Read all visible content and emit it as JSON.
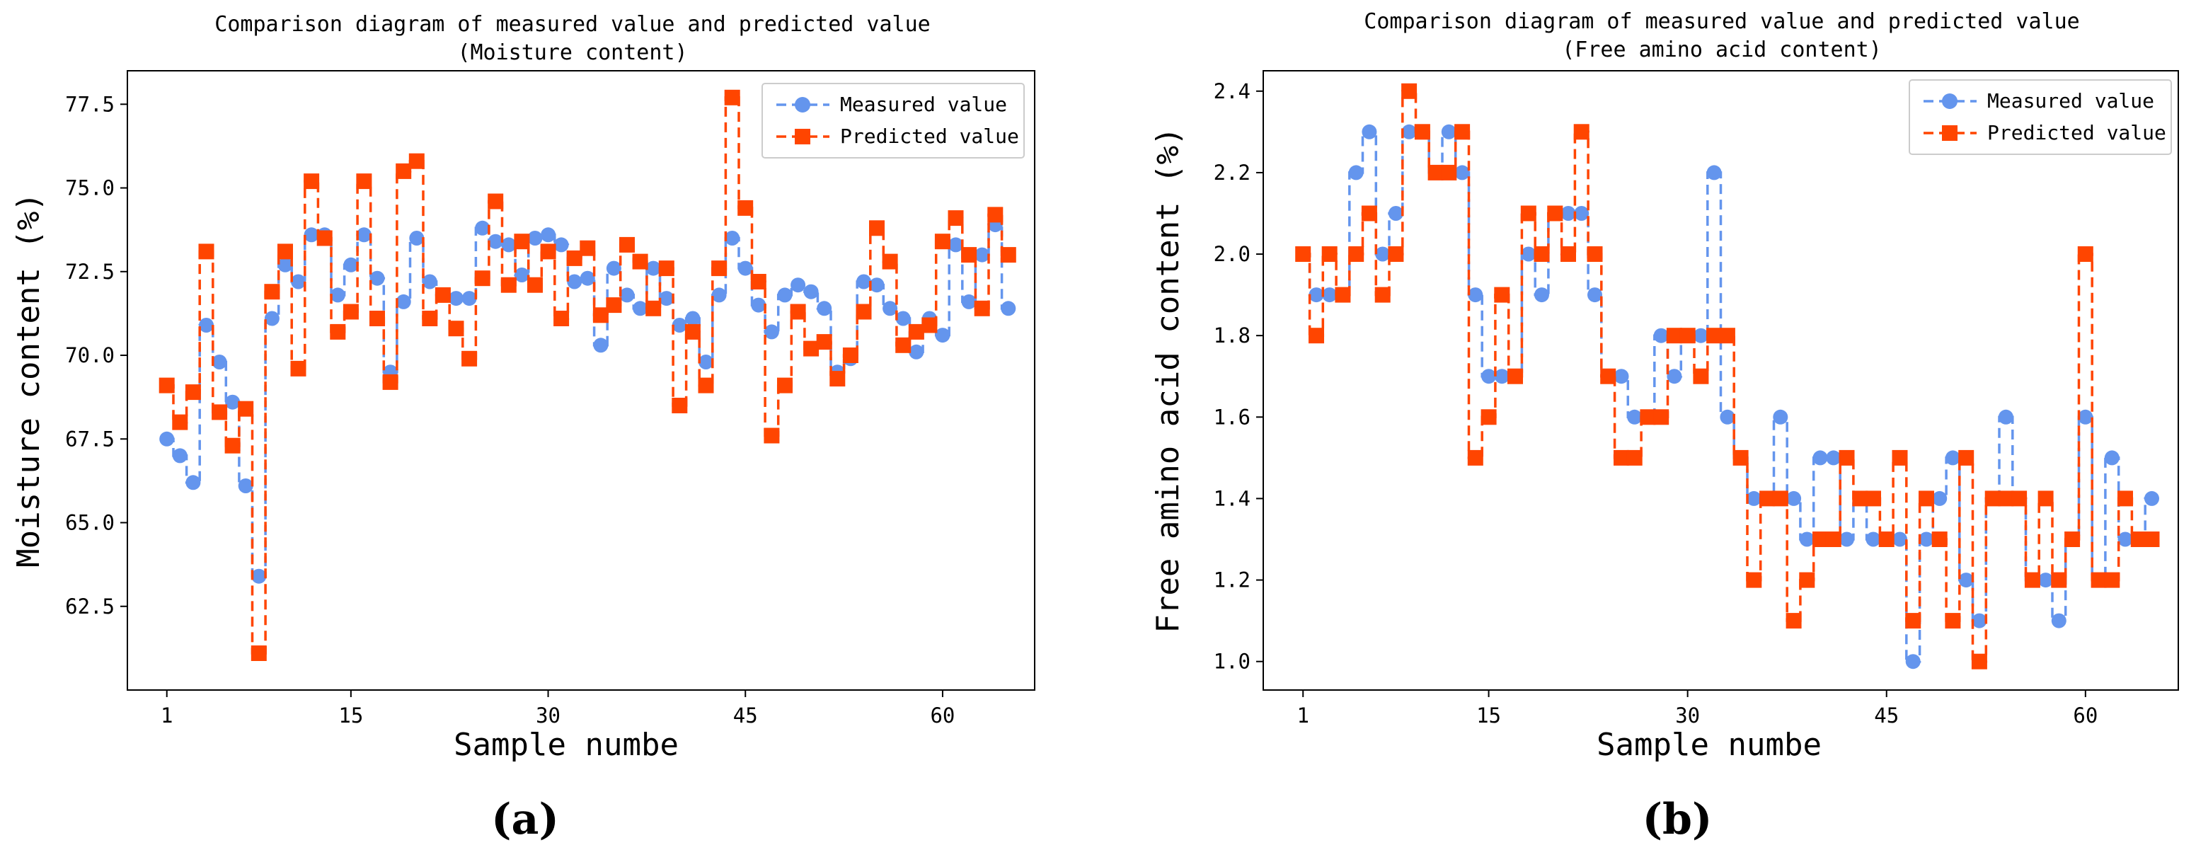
{
  "chart_data": [
    {
      "type": "line",
      "step": "mid",
      "panel_label": "(a)",
      "title": "Comparison diagram of measured value and predicted value",
      "subtitle": "(Moisture content)",
      "xlabel": "Sample numbe",
      "ylabel": "Moisture content (%)",
      "xlim": [
        -2,
        67
      ],
      "ylim": [
        60,
        78.5
      ],
      "xticks": [
        1,
        15,
        30,
        45,
        60
      ],
      "yticks": [
        62.5,
        65.0,
        67.5,
        70.0,
        72.5,
        75.0,
        77.5
      ],
      "ytick_format": 1,
      "legend_loc": "upper right",
      "series": [
        {
          "name": "Measured value",
          "color": "#6495ed",
          "marker": "circle",
          "values": [
            67.5,
            67.0,
            66.2,
            70.9,
            69.8,
            68.6,
            66.1,
            63.4,
            71.1,
            72.7,
            72.2,
            73.6,
            73.6,
            71.8,
            72.7,
            73.6,
            72.3,
            69.5,
            71.6,
            73.5,
            72.2,
            71.8,
            71.7,
            71.7,
            73.8,
            73.4,
            73.3,
            72.4,
            73.5,
            73.6,
            73.3,
            72.2,
            72.3,
            70.3,
            72.6,
            71.8,
            71.4,
            72.6,
            71.7,
            70.9,
            71.1,
            69.8,
            71.8,
            73.5,
            72.6,
            71.5,
            70.7,
            71.8,
            72.1,
            71.9,
            71.4,
            69.5,
            69.9,
            72.2,
            72.1,
            71.4,
            71.1,
            70.1,
            71.1,
            70.6,
            73.3,
            71.6,
            73.0,
            73.9,
            71.4
          ]
        },
        {
          "name": "Predicted value",
          "color": "#ff4500",
          "marker": "square",
          "values": [
            69.1,
            68.0,
            68.9,
            73.1,
            68.3,
            67.3,
            68.4,
            61.1,
            71.9,
            73.1,
            69.6,
            75.2,
            73.5,
            70.7,
            71.3,
            75.2,
            71.1,
            69.2,
            75.5,
            75.8,
            71.1,
            71.8,
            70.8,
            69.9,
            72.3,
            74.6,
            72.1,
            73.4,
            72.1,
            73.1,
            71.1,
            72.9,
            73.2,
            71.2,
            71.5,
            73.3,
            72.8,
            71.4,
            72.6,
            68.5,
            70.7,
            69.1,
            72.6,
            77.7,
            74.4,
            72.2,
            67.6,
            69.1,
            71.3,
            70.2,
            70.4,
            69.3,
            70.0,
            71.3,
            73.8,
            72.8,
            70.3,
            70.7,
            70.9,
            73.4,
            74.1,
            73.0,
            71.4,
            74.2,
            73.0
          ]
        }
      ]
    },
    {
      "type": "line",
      "step": "mid",
      "panel_label": "(b)",
      "title": "Comparison diagram of measured value and predicted value",
      "subtitle": "(Free amino acid content)",
      "xlabel": "Sample numbe",
      "ylabel": "Free amino acid content (%)",
      "xlim": [
        -2,
        67
      ],
      "ylim": [
        0.93,
        2.45
      ],
      "xticks": [
        1,
        15,
        30,
        45,
        60
      ],
      "yticks": [
        1.0,
        1.2,
        1.4,
        1.6,
        1.8,
        2.0,
        2.2,
        2.4
      ],
      "ytick_format": 1,
      "legend_loc": "upper right",
      "series": [
        {
          "name": "Measured value",
          "color": "#6495ed",
          "marker": "circle",
          "values": [
            2.0,
            1.9,
            1.9,
            1.9,
            2.2,
            2.3,
            2.0,
            2.1,
            2.3,
            2.3,
            2.2,
            2.3,
            2.2,
            1.9,
            1.7,
            1.7,
            1.7,
            2.0,
            1.9,
            2.1,
            2.1,
            2.1,
            1.9,
            1.7,
            1.7,
            1.6,
            1.6,
            1.8,
            1.7,
            1.8,
            1.8,
            2.2,
            1.6,
            1.5,
            1.4,
            1.4,
            1.6,
            1.4,
            1.3,
            1.5,
            1.5,
            1.3,
            1.4,
            1.3,
            1.3,
            1.3,
            1.0,
            1.3,
            1.4,
            1.5,
            1.2,
            1.1,
            1.4,
            1.6,
            1.4,
            1.2,
            1.2,
            1.1,
            1.3,
            1.6,
            1.2,
            1.5,
            1.3,
            1.3,
            1.4
          ]
        },
        {
          "name": "Predicted value",
          "color": "#ff4500",
          "marker": "square",
          "values": [
            2.0,
            1.8,
            2.0,
            1.9,
            2.0,
            2.1,
            1.9,
            2.0,
            2.4,
            2.3,
            2.2,
            2.2,
            2.3,
            1.5,
            1.6,
            1.9,
            1.7,
            2.1,
            2.0,
            2.1,
            2.0,
            2.3,
            2.0,
            1.7,
            1.5,
            1.5,
            1.6,
            1.6,
            1.8,
            1.8,
            1.7,
            1.8,
            1.8,
            1.5,
            1.2,
            1.4,
            1.4,
            1.1,
            1.2,
            1.3,
            1.3,
            1.5,
            1.4,
            1.4,
            1.3,
            1.5,
            1.1,
            1.4,
            1.3,
            1.1,
            1.5,
            1.0,
            1.4,
            1.4,
            1.4,
            1.2,
            1.4,
            1.2,
            1.3,
            2.0,
            1.2,
            1.2,
            1.4,
            1.3,
            1.3
          ]
        }
      ]
    }
  ]
}
